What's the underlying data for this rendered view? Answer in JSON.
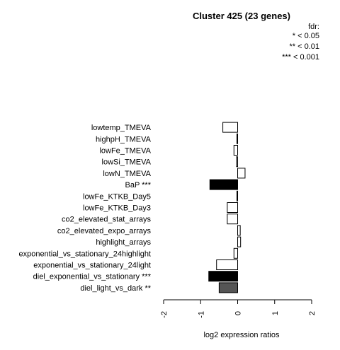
{
  "chart_data": {
    "type": "bar",
    "orientation": "horizontal",
    "title": "Cluster 425 (23 genes)",
    "xlabel": "log2 expression ratios",
    "ylabel": "",
    "xlim": [
      -2,
      2
    ],
    "xticks": [
      -2,
      -1,
      0,
      1,
      2
    ],
    "legend": {
      "title": "fdr:",
      "entries": [
        "* < 0.05",
        "** < 0.01",
        "*** < 0.001"
      ],
      "position": "top-right"
    },
    "categories": [
      "lowtemp_TMEVA",
      "highpH_TMEVA",
      "lowFe_TMEVA",
      "lowSi_TMEVA",
      "lowN_TMEVA",
      "BaP ***",
      "lowFe_KTKB_Day5",
      "lowFe_KTKB_Day3",
      "co2_elevated_stat_arrays",
      "co2_elevated_expo_arrays",
      "highlight_arrays",
      "exponential_vs_stationary_24highlight",
      "exponential_vs_stationary_24light",
      "diel_exponential_vs_stationary ***",
      "diel_light_vs_dark **"
    ],
    "values": [
      -0.4,
      -0.02,
      -0.1,
      -0.03,
      0.2,
      -0.75,
      -0.02,
      -0.28,
      -0.28,
      0.07,
      0.08,
      -0.1,
      -0.57,
      -0.78,
      -0.5
    ],
    "fills": [
      "#ffffff",
      "#ffffff",
      "#ffffff",
      "#ffffff",
      "#ffffff",
      "#000000",
      "#ffffff",
      "#ffffff",
      "#ffffff",
      "#ffffff",
      "#ffffff",
      "#ffffff",
      "#ffffff",
      "#000000",
      "#555555"
    ]
  }
}
